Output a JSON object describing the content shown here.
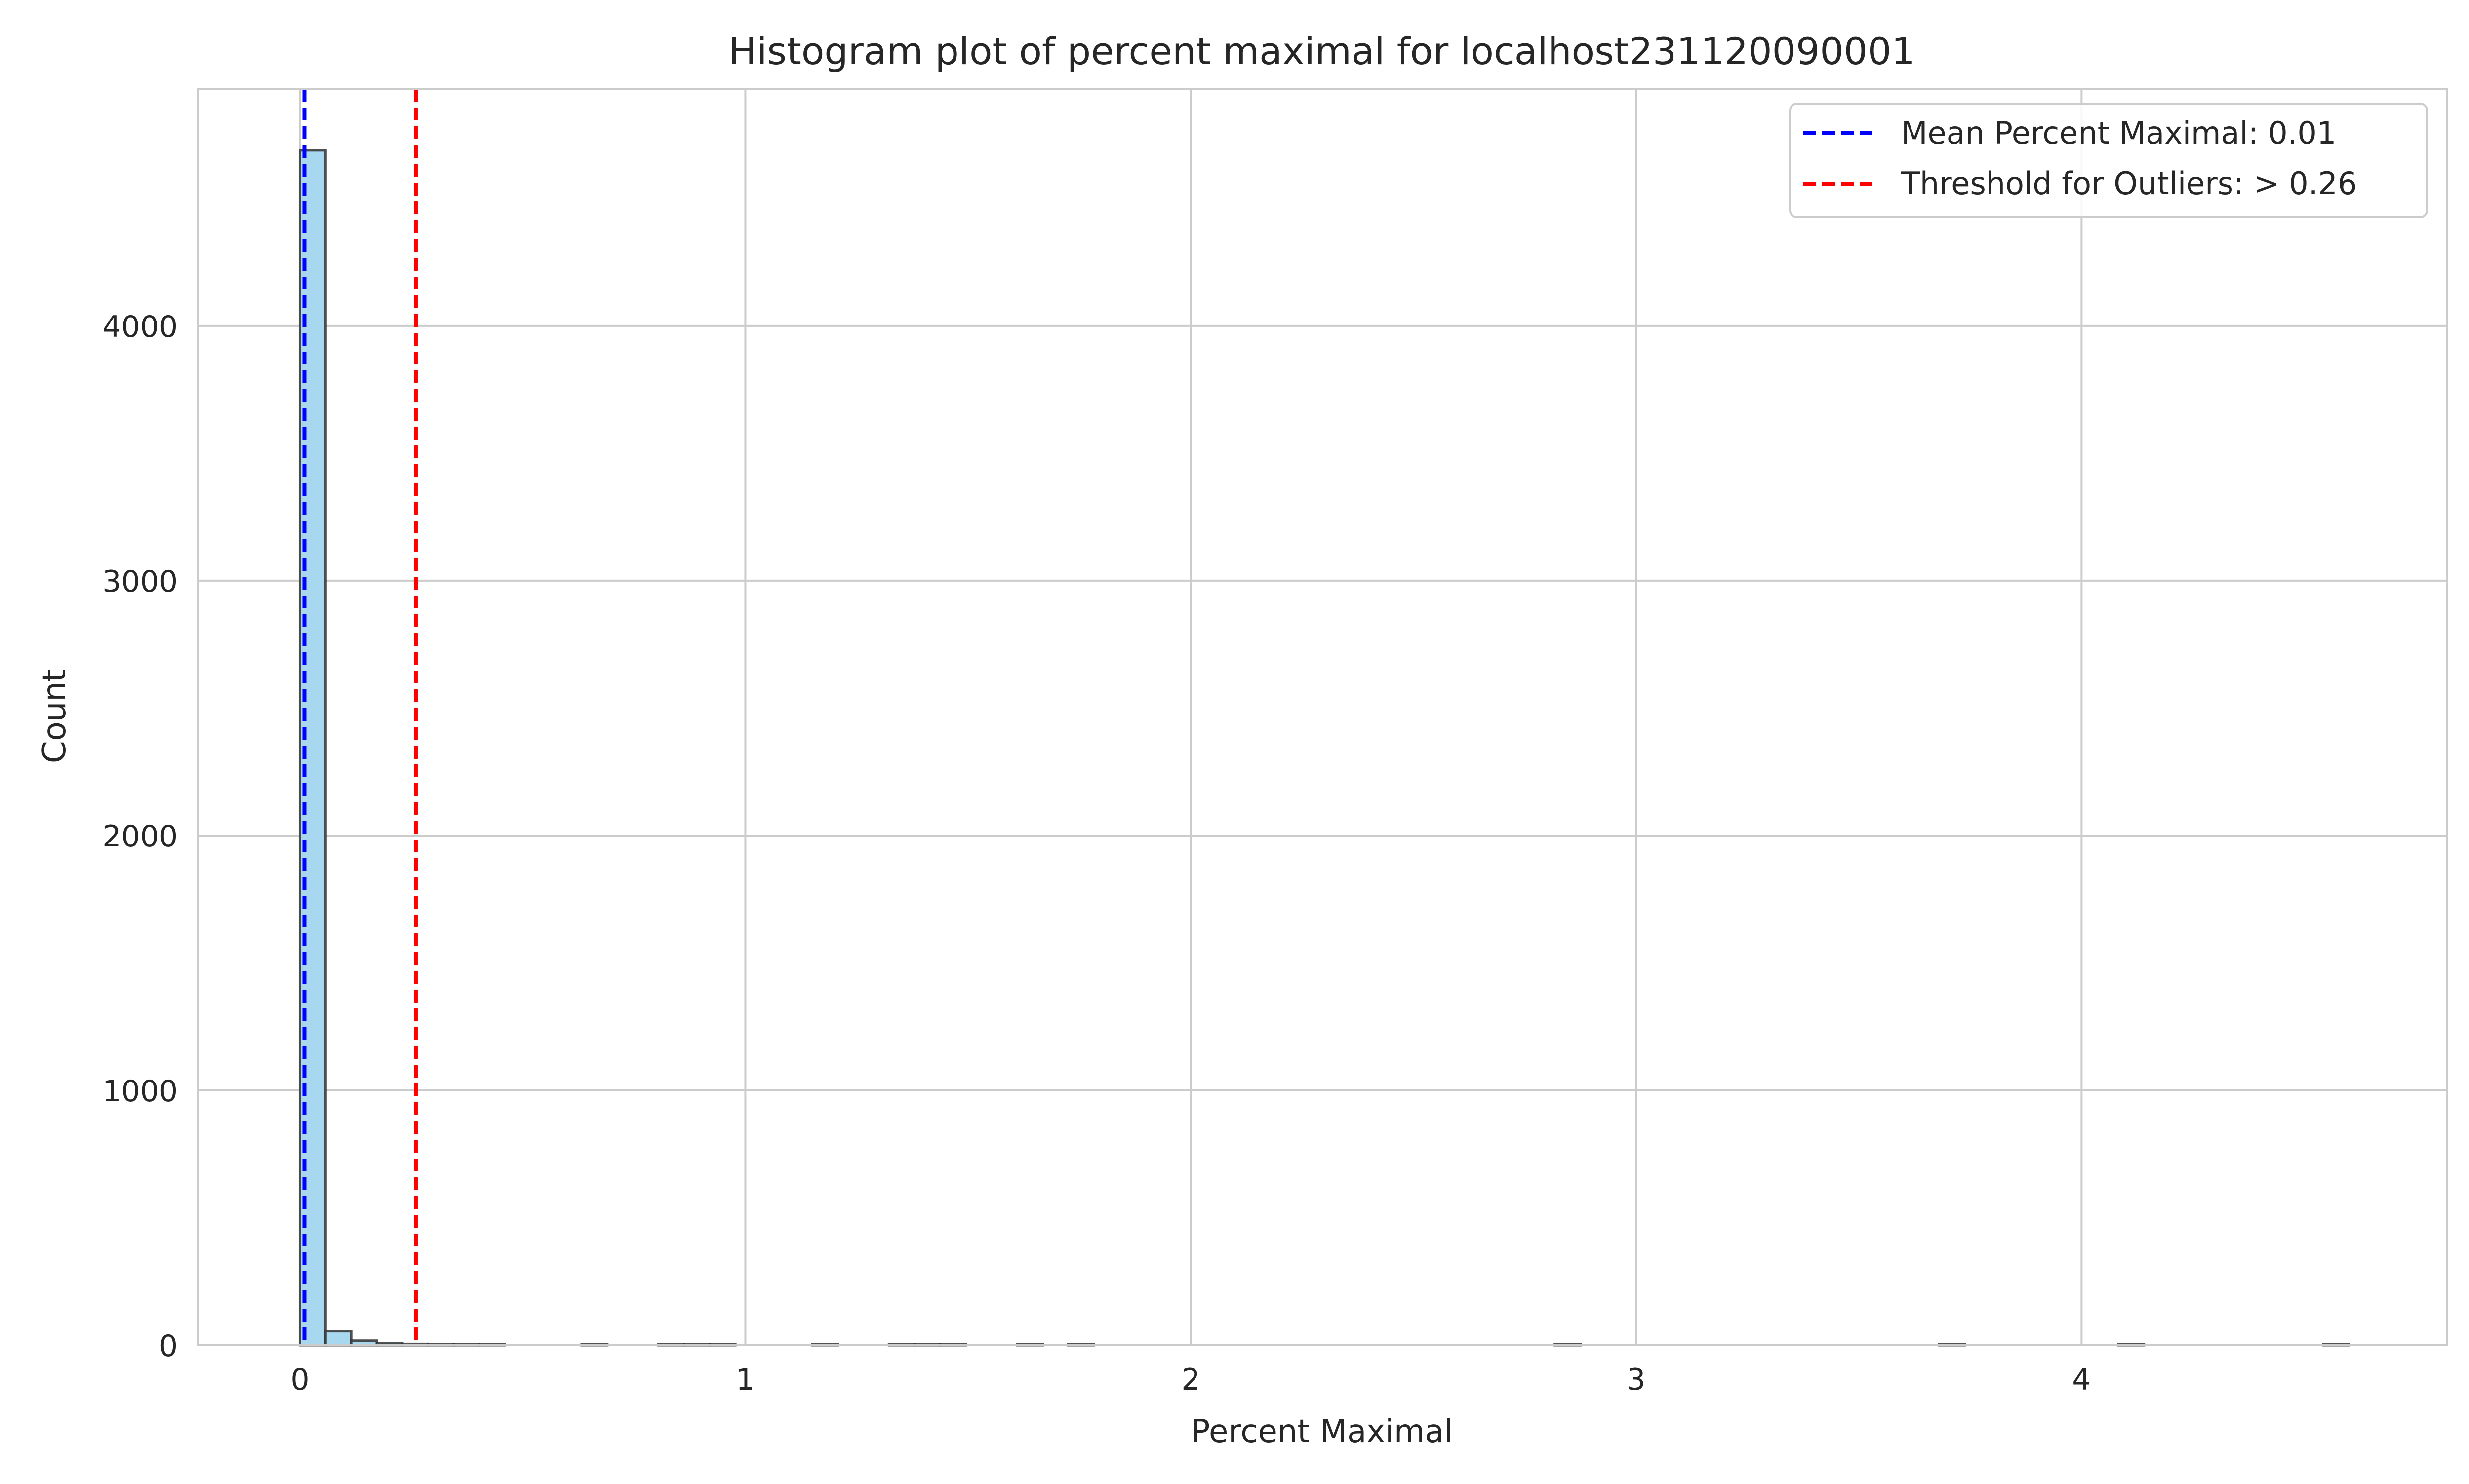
{
  "chart_data": {
    "type": "bar",
    "title": "Histogram plot of percent maximal for localhost231120090001",
    "xlabel": "Percent Maximal",
    "ylabel": "Count",
    "xlim": [
      -0.23,
      4.82
    ],
    "ylim": [
      0,
      4930
    ],
    "x_ticks": [
      {
        "value": 0,
        "label": "0"
      },
      {
        "value": 1,
        "label": "1"
      },
      {
        "value": 2,
        "label": "2"
      },
      {
        "value": 3,
        "label": "3"
      },
      {
        "value": 4,
        "label": "4"
      }
    ],
    "y_ticks": [
      {
        "value": 0,
        "label": "0"
      },
      {
        "value": 1000,
        "label": "1000"
      },
      {
        "value": 2000,
        "label": "2000"
      },
      {
        "value": 3000,
        "label": "3000"
      },
      {
        "value": 4000,
        "label": "4000"
      }
    ],
    "grid": true,
    "bin_width": 0.0575,
    "bins": [
      {
        "start": 0.0,
        "count": 4690
      },
      {
        "start": 0.0575,
        "count": 55
      },
      {
        "start": 0.115,
        "count": 18
      },
      {
        "start": 0.1725,
        "count": 8
      },
      {
        "start": 0.23,
        "count": 5
      },
      {
        "start": 0.2875,
        "count": 3
      },
      {
        "start": 0.345,
        "count": 2
      },
      {
        "start": 0.4025,
        "count": 1
      },
      {
        "start": 0.6325,
        "count": 1
      },
      {
        "start": 0.805,
        "count": 1
      },
      {
        "start": 0.8625,
        "count": 1
      },
      {
        "start": 0.92,
        "count": 1
      },
      {
        "start": 1.15,
        "count": 1
      },
      {
        "start": 1.3225,
        "count": 1
      },
      {
        "start": 1.38,
        "count": 1
      },
      {
        "start": 1.4375,
        "count": 1
      },
      {
        "start": 1.61,
        "count": 1
      },
      {
        "start": 1.725,
        "count": 1
      },
      {
        "start": 2.8175,
        "count": 1
      },
      {
        "start": 3.68,
        "count": 1
      },
      {
        "start": 4.0825,
        "count": 1
      },
      {
        "start": 4.5425,
        "count": 1
      }
    ],
    "bar_color": "#a8d8ef",
    "bar_edge_color": "#333333",
    "reference_lines": [
      {
        "x": 0.01,
        "label": "Mean Percent Maximal: 0.01",
        "color": "#0000ff",
        "style": "dashed"
      },
      {
        "x": 0.26,
        "label": "Threshold for Outliers: > 0.26",
        "color": "#ff0000",
        "style": "dashed"
      }
    ],
    "legend_position": "top-right"
  }
}
